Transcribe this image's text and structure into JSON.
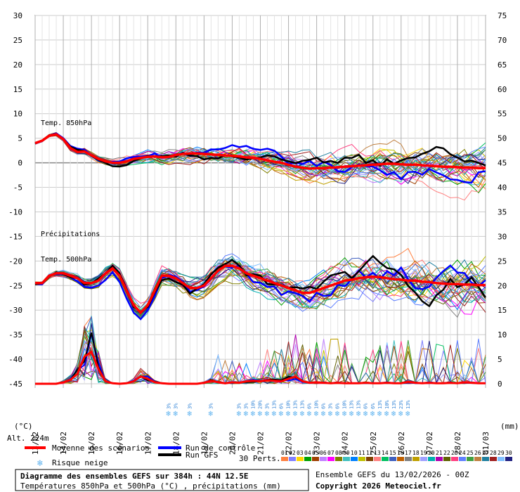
{
  "chart_data": {
    "type": "line",
    "left_axis": {
      "unit": "(°C)",
      "ticks": [
        30,
        25,
        20,
        15,
        10,
        5,
        0,
        -5,
        -10,
        -15,
        -20,
        -25,
        -30,
        -35,
        -40,
        -45
      ],
      "ylim": [
        -45,
        30
      ]
    },
    "right_axis": {
      "unit": "(mm)",
      "ticks": [
        75,
        70,
        65,
        60,
        55,
        50,
        45,
        40,
        35,
        30,
        25,
        20,
        15,
        10,
        5,
        0
      ],
      "ylim": [
        0,
        75
      ]
    },
    "x_ticks": [
      "14/02",
      "15/02",
      "16/02",
      "17/02",
      "18/02",
      "19/02",
      "20/02",
      "21/02",
      "22/02",
      "23/02",
      "24/02",
      "25/02",
      "26/02",
      "27/02",
      "28/02",
      "01/03"
    ],
    "x_first_label": "14/02",
    "x_first_tick": "13/02",
    "x_hours_start": 0,
    "x_hours_end": 384,
    "series_labels": {
      "t850": "Temp. 850hPa",
      "t500": "Temp. 500hPa",
      "precip": "Précipitations"
    },
    "mean_850": {
      "x": [
        0,
        6,
        12,
        18,
        24,
        30,
        36,
        42,
        48,
        54,
        60,
        66,
        72,
        78,
        84,
        90,
        96,
        102,
        108,
        114,
        120,
        126,
        132,
        138,
        144,
        150,
        156,
        162,
        168,
        174,
        180,
        186,
        192,
        198,
        204,
        210,
        216,
        222,
        228,
        234,
        240,
        246,
        252,
        258,
        264,
        270,
        276,
        282,
        288,
        294,
        300,
        306,
        312,
        318,
        324,
        330,
        336,
        342,
        348,
        354,
        360,
        366,
        372,
        378,
        384
      ],
      "y": [
        4,
        4.5,
        5.5,
        5.8,
        4.8,
        3,
        2.2,
        2.3,
        1.5,
        0.8,
        0.3,
        0,
        0,
        0.3,
        0.8,
        1,
        1.2,
        1.3,
        1.1,
        1.2,
        1.6,
        1.8,
        1.9,
        1.9,
        1.8,
        1.7,
        1.6,
        1.5,
        1.4,
        1.3,
        1.1,
        1,
        0.8,
        0.5,
        0.2,
        0,
        -0.4,
        -0.8,
        -1,
        -1.2,
        -1.1,
        -1.1,
        -1,
        -0.9,
        -0.8,
        -0.7,
        -0.6,
        -0.5,
        -0.4,
        -0.3,
        -0.2,
        -0.2,
        -0.3,
        -0.4,
        -0.4,
        -0.5,
        -0.6,
        -0.7,
        -0.8,
        -0.8,
        -0.9,
        -1,
        -1,
        -1.1,
        -1.1
      ]
    },
    "mean_500": {
      "x": [
        0,
        6,
        12,
        18,
        24,
        30,
        36,
        42,
        48,
        54,
        60,
        66,
        72,
        78,
        84,
        90,
        96,
        102,
        108,
        114,
        120,
        126,
        132,
        138,
        144,
        150,
        156,
        162,
        168,
        174,
        180,
        186,
        192,
        198,
        204,
        210,
        216,
        222,
        228,
        234,
        240,
        246,
        252,
        258,
        264,
        270,
        276,
        282,
        288,
        294,
        300,
        306,
        312,
        318,
        324,
        330,
        336,
        342,
        348,
        354,
        360,
        366,
        372,
        378,
        384
      ],
      "y": [
        -24.5,
        -24.5,
        -23,
        -22.5,
        -22.5,
        -23,
        -23.5,
        -24.5,
        -24.5,
        -24,
        -22.5,
        -21.5,
        -23,
        -26,
        -29,
        -30.5,
        -29,
        -26,
        -23,
        -23,
        -23.5,
        -24.5,
        -25.5,
        -25.5,
        -25,
        -23.5,
        -22,
        -21,
        -21,
        -21.5,
        -22.5,
        -23,
        -23.5,
        -24,
        -24.5,
        -25,
        -25.5,
        -26,
        -26.5,
        -26.5,
        -26,
        -25.5,
        -25,
        -24.5,
        -24,
        -23.8,
        -23.5,
        -23.3,
        -23.2,
        -23.3,
        -23.5,
        -23.7,
        -23.8,
        -24,
        -24,
        -24.2,
        -24.3,
        -24.5,
        -24.6,
        -24.7,
        -24.7,
        -24.8,
        -24.8,
        -24.9,
        -24.9
      ]
    },
    "mean_precip_mm": {
      "x": [
        0,
        6,
        12,
        18,
        24,
        30,
        36,
        42,
        48,
        54,
        60,
        66,
        72,
        78,
        84,
        90,
        96,
        102,
        108,
        114,
        120,
        126,
        132,
        138,
        144,
        150,
        156,
        162,
        168,
        174,
        180,
        186,
        192,
        198,
        204,
        210,
        216,
        222,
        228,
        234,
        240,
        246,
        252,
        258,
        264,
        270,
        276,
        282,
        288,
        294,
        300,
        306,
        312,
        318,
        324,
        330,
        336,
        342,
        348,
        354,
        360,
        366,
        372,
        378,
        384
      ],
      "y": [
        0,
        0,
        0,
        0,
        0.3,
        0.8,
        2,
        5.5,
        6.5,
        3,
        0.5,
        0.1,
        0,
        0.1,
        0.5,
        1.5,
        1,
        0.3,
        0.1,
        0,
        0,
        0,
        0,
        0,
        0.2,
        0.6,
        0.3,
        0.1,
        0.3,
        0.2,
        0.5,
        0.6,
        0.5,
        0.7,
        0.6,
        0.5,
        1,
        1.5,
        0.5,
        0.2,
        0.3,
        0.2,
        0.1,
        0.2,
        0.1,
        0.1,
        0.1,
        0.2,
        0.1,
        0.1,
        0.2,
        0.1,
        0.1,
        0.4,
        0.2,
        0.1,
        0.2,
        0.1,
        0.1,
        0.2,
        0.1,
        0.3,
        0.2,
        0.1,
        0.1
      ]
    },
    "snow_risk": [
      {
        "day": "19/02",
        "pct": "3%"
      },
      {
        "day": "19/02",
        "pct": "3%"
      },
      {
        "day": "20/02",
        "pct": "3%"
      },
      {
        "day": "21/02",
        "pct": "3%"
      },
      {
        "day": "22/02",
        "pct": "3%"
      },
      {
        "day": "22/02",
        "pct": "3%"
      },
      {
        "day": "22/02",
        "pct": "10%"
      },
      {
        "day": "23/02",
        "pct": "20%"
      },
      {
        "day": "23/02",
        "pct": "3%"
      },
      {
        "day": "23/02",
        "pct": "13%"
      },
      {
        "day": "23/02",
        "pct": "6%"
      },
      {
        "day": "24/02",
        "pct": "10%"
      },
      {
        "day": "24/02",
        "pct": "13%"
      },
      {
        "day": "24/02",
        "pct": "13%"
      },
      {
        "day": "25/02",
        "pct": "6%"
      },
      {
        "day": "25/02",
        "pct": "10%"
      },
      {
        "day": "25/02",
        "pct": "6%"
      },
      {
        "day": "25/02",
        "pct": "3%"
      },
      {
        "day": "26/02",
        "pct": "6%"
      },
      {
        "day": "26/02",
        "pct": "10%"
      },
      {
        "day": "26/02",
        "pct": "13%"
      },
      {
        "day": "26/02",
        "pct": "13%"
      },
      {
        "day": "27/02",
        "pct": "6%"
      },
      {
        "day": "27/02",
        "pct": "6%"
      },
      {
        "day": "27/02",
        "pct": "13%"
      },
      {
        "day": "28/02",
        "pct": "10%"
      },
      {
        "day": "28/02",
        "pct": "13%"
      },
      {
        "day": "28/02",
        "pct": "23%"
      },
      {
        "day": "01/03",
        "pct": "13%"
      }
    ],
    "grid": true
  },
  "labels": {
    "alt": "Alt. 224m",
    "legend_mean": "Moyenne des scénarios",
    "legend_control": "Run de contrôle",
    "legend_gfs": "Run GFS",
    "legend_snow": "Risque neige",
    "perts_label": "30 Perts.",
    "perts_numbers": [
      "01",
      "02",
      "03",
      "04",
      "05",
      "06",
      "07",
      "08",
      "09",
      "10",
      "11",
      "12",
      "13",
      "14",
      "15",
      "16",
      "17",
      "18",
      "19",
      "20",
      "21",
      "22",
      "23",
      "24",
      "25",
      "26",
      "27",
      "28",
      "29",
      "30"
    ],
    "info_title": "Diagramme des ensembles GEFS sur 384h : 44N 12.5E",
    "info_sub": "Températures 850hPa et 500hPa (°C) , précipitations (mm)",
    "run_info": "Ensemble GEFS du 13/02/2026 - 00Z",
    "copyright": "Copyright 2026 Meteociel.fr"
  },
  "colors": {
    "mean": "#ff0000",
    "control": "#0000ff",
    "gfs": "#000000",
    "snow": "#5fb3ef",
    "perts": [
      "#ff8040",
      "#8080ff",
      "#ffd700",
      "#00a000",
      "#a04000",
      "#c080ff",
      "#ff00ff",
      "#808000",
      "#40c0c0",
      "#0080ff",
      "#c0c000",
      "#804000",
      "#ff8080",
      "#00c060",
      "#4060c0",
      "#c06000",
      "#808080",
      "#c0a000",
      "#a0a0ff",
      "#00b0b0",
      "#b000b0",
      "#606000",
      "#ff4080",
      "#6080ff",
      "#40a040",
      "#c08040",
      "#2080a0",
      "#a02020",
      "#80c0ff",
      "#202080"
    ]
  }
}
